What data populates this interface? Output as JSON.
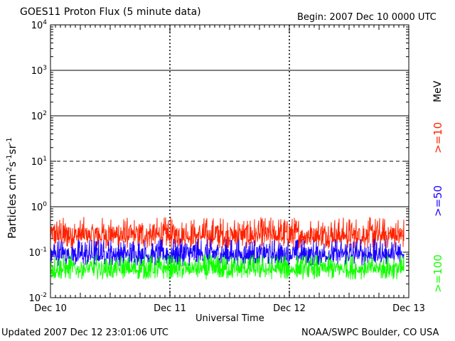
{
  "title": "GOES11 Proton Flux (5 minute data)",
  "begin": "Begin: 2007 Dec 10 0000 UTC",
  "updated": "Updated 2007 Dec 12 23:01:06 UTC",
  "source": "NOAA/SWPC Boulder, CO USA",
  "colors": {
    "gt10": "#ff2200",
    "gt50": "#1a00ff",
    "gt100": "#11ff00",
    "axes": "#000000"
  },
  "chart_data": {
    "type": "line",
    "title": "GOES11 Proton Flux (5 minute data)",
    "xlabel": "Universal Time",
    "ylabel": "Particles cm-2s-1sr-1",
    "ylabel_parts": {
      "base": "Particles cm",
      "e1": "-2",
      "m1": "s",
      "e2": "-1",
      "m2": "sr",
      "e3": "-1"
    },
    "y_scale": "log",
    "ylim": [
      0.01,
      10000
    ],
    "xlim": [
      "2007-12-10 00:00",
      "2007-12-13 00:00"
    ],
    "x_ticks": [
      "Dec 10",
      "Dec 11",
      "Dec 12",
      "Dec 13"
    ],
    "y_ticks": [
      {
        "base": "10",
        "exp": "-2"
      },
      {
        "base": "10",
        "exp": "-1"
      },
      {
        "base": "10",
        "exp": "0"
      },
      {
        "base": "10",
        "exp": "1"
      },
      {
        "base": "10",
        "exp": "2"
      },
      {
        "base": "10",
        "exp": "3"
      },
      {
        "base": "10",
        "exp": "4"
      }
    ],
    "legend_unit": "MeV",
    "series": [
      {
        "name": ">=10",
        "typical_flux": [
          0.12,
          0.6
        ]
      },
      {
        "name": ">=50",
        "typical_flux": [
          0.05,
          0.2
        ]
      },
      {
        "name": ">=100",
        "typical_flux": [
          0.025,
          0.09
        ]
      }
    ],
    "thresholds": [
      1,
      10,
      100,
      1000
    ],
    "dashed_threshold": 10
  }
}
